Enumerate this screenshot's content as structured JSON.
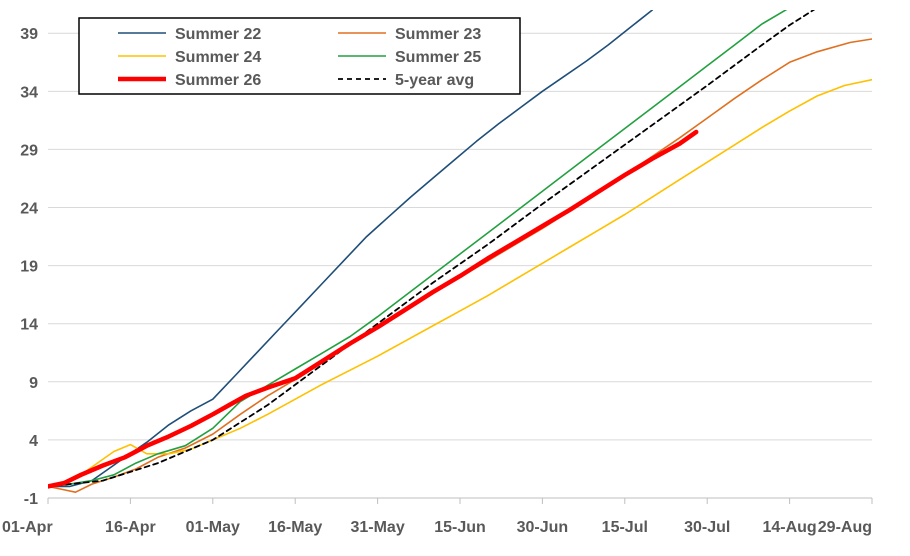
{
  "chart_data": {
    "type": "line",
    "title": "",
    "xlabel": "",
    "ylabel": "",
    "xlim": [
      0,
      150
    ],
    "ylim": [
      -1,
      41
    ],
    "grid": true,
    "legend_position": "top-left",
    "x_ticks": [
      {
        "x": 0,
        "label": "01-Apr"
      },
      {
        "x": 15,
        "label": "16-Apr"
      },
      {
        "x": 30,
        "label": "01-May"
      },
      {
        "x": 45,
        "label": "16-May"
      },
      {
        "x": 60,
        "label": "31-May"
      },
      {
        "x": 75,
        "label": "15-Jun"
      },
      {
        "x": 90,
        "label": "30-Jun"
      },
      {
        "x": 105,
        "label": "15-Jul"
      },
      {
        "x": 120,
        "label": "30-Jul"
      },
      {
        "x": 135,
        "label": "14-Aug"
      },
      {
        "x": 150,
        "label": "29-Aug"
      }
    ],
    "y_ticks": [
      -1,
      4,
      9,
      14,
      19,
      24,
      29,
      34,
      39
    ],
    "series": [
      {
        "name": "Summer 22",
        "color": "#1F4E79",
        "width": 1.6,
        "dash": "",
        "points": [
          [
            0,
            0
          ],
          [
            4,
            0
          ],
          [
            8,
            0.5
          ],
          [
            11,
            1.5
          ],
          [
            14,
            2.5
          ],
          [
            18,
            3.8
          ],
          [
            22,
            5.3
          ],
          [
            26,
            6.5
          ],
          [
            30,
            7.5
          ],
          [
            34,
            9.5
          ],
          [
            38,
            11.5
          ],
          [
            42,
            13.5
          ],
          [
            46,
            15.5
          ],
          [
            50,
            17.5
          ],
          [
            54,
            19.5
          ],
          [
            58,
            21.5
          ],
          [
            62,
            23.2
          ],
          [
            66,
            24.9
          ],
          [
            70,
            26.5
          ],
          [
            74,
            28.1
          ],
          [
            78,
            29.7
          ],
          [
            82,
            31.2
          ],
          [
            86,
            32.6
          ],
          [
            90,
            34
          ],
          [
            94,
            35.3
          ],
          [
            98,
            36.6
          ],
          [
            102,
            38
          ],
          [
            106,
            39.5
          ],
          [
            110,
            41
          ]
        ]
      },
      {
        "name": "Summer 23",
        "color": "#E07020",
        "width": 1.6,
        "dash": "",
        "points": [
          [
            0,
            0
          ],
          [
            3,
            -0.3
          ],
          [
            5,
            -0.5
          ],
          [
            8,
            0.2
          ],
          [
            12,
            0.8
          ],
          [
            16,
            1.5
          ],
          [
            20,
            2.5
          ],
          [
            25,
            3.3
          ],
          [
            30,
            4.5
          ],
          [
            35,
            6.2
          ],
          [
            40,
            7.8
          ],
          [
            45,
            9.2
          ],
          [
            50,
            10.7
          ],
          [
            55,
            12.2
          ],
          [
            60,
            13.7
          ],
          [
            65,
            15.2
          ],
          [
            70,
            16.6
          ],
          [
            75,
            18
          ],
          [
            80,
            19.4
          ],
          [
            85,
            20.8
          ],
          [
            90,
            22.2
          ],
          [
            95,
            23.7
          ],
          [
            100,
            25.2
          ],
          [
            105,
            26.8
          ],
          [
            110,
            28.4
          ],
          [
            115,
            30
          ],
          [
            120,
            31.7
          ],
          [
            125,
            33.4
          ],
          [
            130,
            35
          ],
          [
            135,
            36.5
          ],
          [
            140,
            37.4
          ],
          [
            146,
            38.2
          ],
          [
            150,
            38.5
          ]
        ]
      },
      {
        "name": "Summer 24",
        "color": "#FFC000",
        "width": 1.6,
        "dash": "",
        "points": [
          [
            0,
            0
          ],
          [
            3,
            0.4
          ],
          [
            6,
            1
          ],
          [
            9,
            2
          ],
          [
            12,
            3
          ],
          [
            15,
            3.6
          ],
          [
            18,
            2.8
          ],
          [
            22,
            2.8
          ],
          [
            26,
            3.2
          ],
          [
            30,
            4
          ],
          [
            35,
            5
          ],
          [
            40,
            6.2
          ],
          [
            45,
            7.5
          ],
          [
            50,
            8.8
          ],
          [
            55,
            10
          ],
          [
            60,
            11.2
          ],
          [
            65,
            12.5
          ],
          [
            70,
            13.8
          ],
          [
            75,
            15.1
          ],
          [
            80,
            16.4
          ],
          [
            85,
            17.8
          ],
          [
            90,
            19.2
          ],
          [
            95,
            20.6
          ],
          [
            100,
            22
          ],
          [
            105,
            23.4
          ],
          [
            110,
            24.9
          ],
          [
            115,
            26.4
          ],
          [
            120,
            27.9
          ],
          [
            125,
            29.4
          ],
          [
            130,
            30.9
          ],
          [
            135,
            32.3
          ],
          [
            140,
            33.6
          ],
          [
            145,
            34.5
          ],
          [
            150,
            35
          ]
        ]
      },
      {
        "name": "Summer 25",
        "color": "#22A040",
        "width": 1.6,
        "dash": "",
        "points": [
          [
            0,
            0
          ],
          [
            4,
            0.2
          ],
          [
            8,
            0.5
          ],
          [
            12,
            1
          ],
          [
            16,
            2
          ],
          [
            20,
            2.8
          ],
          [
            25,
            3.5
          ],
          [
            30,
            5
          ],
          [
            35,
            7.3
          ],
          [
            40,
            8.7
          ],
          [
            45,
            10.1
          ],
          [
            50,
            11.5
          ],
          [
            55,
            12.9
          ],
          [
            60,
            14.6
          ],
          [
            65,
            16.4
          ],
          [
            70,
            18.2
          ],
          [
            75,
            20
          ],
          [
            80,
            21.8
          ],
          [
            85,
            23.6
          ],
          [
            90,
            25.4
          ],
          [
            95,
            27.2
          ],
          [
            100,
            29
          ],
          [
            105,
            30.8
          ],
          [
            110,
            32.6
          ],
          [
            115,
            34.4
          ],
          [
            120,
            36.2
          ],
          [
            125,
            38
          ],
          [
            130,
            39.8
          ],
          [
            135,
            41.2
          ]
        ]
      },
      {
        "name": "Summer 26",
        "color": "#FF0000",
        "width": 4.5,
        "dash": "",
        "points": [
          [
            0,
            0
          ],
          [
            3,
            0.3
          ],
          [
            6,
            1
          ],
          [
            10,
            1.8
          ],
          [
            14,
            2.5
          ],
          [
            18,
            3.5
          ],
          [
            22,
            4.3
          ],
          [
            26,
            5.2
          ],
          [
            30,
            6.2
          ],
          [
            33,
            7
          ],
          [
            36,
            7.8
          ],
          [
            40,
            8.5
          ],
          [
            45,
            9.3
          ],
          [
            50,
            10.8
          ],
          [
            55,
            12.3
          ],
          [
            60,
            13.7
          ],
          [
            65,
            15.2
          ],
          [
            70,
            16.7
          ],
          [
            75,
            18.1
          ],
          [
            80,
            19.6
          ],
          [
            85,
            21
          ],
          [
            90,
            22.4
          ],
          [
            95,
            23.8
          ],
          [
            100,
            25.3
          ],
          [
            105,
            26.8
          ],
          [
            110,
            28.2
          ],
          [
            115,
            29.5
          ],
          [
            118,
            30.5
          ]
        ]
      },
      {
        "name": "5-year avg",
        "color": "#000000",
        "width": 1.8,
        "dash": "5,4",
        "points": [
          [
            0,
            0
          ],
          [
            10,
            0.5
          ],
          [
            20,
            2
          ],
          [
            30,
            4
          ],
          [
            40,
            7
          ],
          [
            50,
            10.5
          ],
          [
            60,
            14
          ],
          [
            70,
            17.5
          ],
          [
            80,
            20.8
          ],
          [
            90,
            24.3
          ],
          [
            100,
            27.7
          ],
          [
            110,
            31.1
          ],
          [
            120,
            34.5
          ],
          [
            130,
            38
          ],
          [
            135,
            39.7
          ],
          [
            140,
            41.2
          ]
        ]
      }
    ]
  }
}
